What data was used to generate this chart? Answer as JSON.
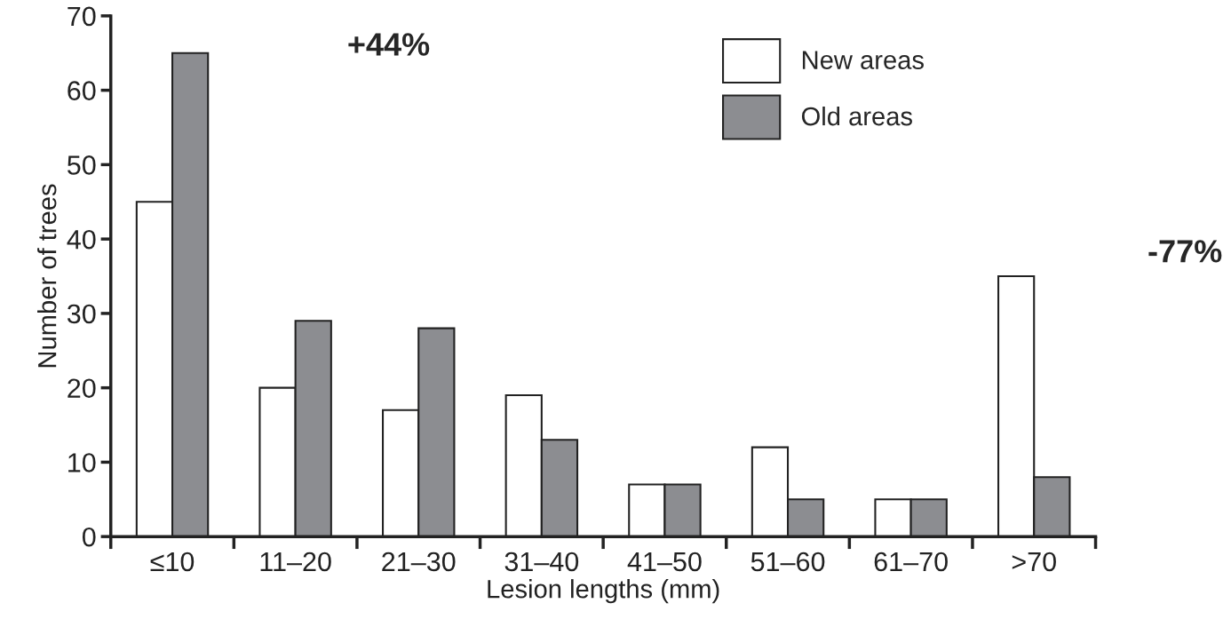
{
  "chart_data": {
    "type": "bar",
    "xlabel": "Lesion lengths (mm)",
    "ylabel": "Number of trees",
    "categories": [
      "≤10",
      "11–20",
      "21–30",
      "31–40",
      "41–50",
      "51–60",
      "61–70",
      ">70"
    ],
    "series": [
      {
        "name": "New areas",
        "color": "#ffffff",
        "values": [
          45,
          20,
          17,
          19,
          7,
          12,
          5,
          35
        ]
      },
      {
        "name": "Old areas",
        "color": "#8c8d91",
        "values": [
          65,
          29,
          28,
          13,
          7,
          5,
          5,
          8
        ]
      }
    ],
    "ylim": [
      0,
      70
    ],
    "yticks": [
      0,
      10,
      20,
      30,
      40,
      50,
      60,
      70
    ],
    "annotations": [
      "+44%",
      "-77%"
    ],
    "grid": false,
    "legend": "top right"
  }
}
